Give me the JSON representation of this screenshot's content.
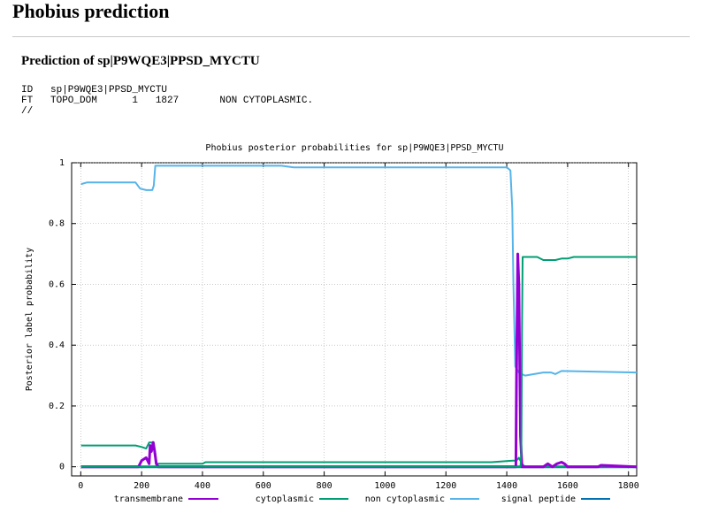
{
  "page": {
    "title": "Phobius prediction",
    "subtitle": "Prediction of sp|P9WQE3|PPSD_MYCTU"
  },
  "flat_file": {
    "lines": [
      "ID   sp|P9WQE3|PPSD_MYCTU",
      "FT   TOPO_DOM      1   1827       NON CYTOPLASMIC.",
      "//"
    ]
  },
  "chart_data": {
    "type": "line",
    "title": "Phobius posterior probabilities for sp|P9WQE3|PPSD_MYCTU",
    "xlabel": "",
    "ylabel": "Posterior label probability",
    "xlim": [
      -30,
      1827
    ],
    "ylim": [
      -0.03,
      1
    ],
    "x_ticks": [
      0,
      200,
      400,
      600,
      800,
      1000,
      1200,
      1400,
      1600,
      1800
    ],
    "y_ticks": [
      0,
      0.2,
      0.4,
      0.6,
      0.8,
      1
    ],
    "y_tick_labels": [
      "0",
      "0.2",
      "0.4",
      "0.6",
      "0.8",
      "1"
    ],
    "legend_position": "bottom",
    "series": [
      {
        "name": "transmembrane",
        "color": "#9400d3",
        "width": 3,
        "points": [
          [
            1,
            0
          ],
          [
            190,
            0
          ],
          [
            200,
            0.02
          ],
          [
            215,
            0.03
          ],
          [
            225,
            0.01
          ],
          [
            228,
            0.07
          ],
          [
            232,
            0.05
          ],
          [
            238,
            0.08
          ],
          [
            243,
            0.05
          ],
          [
            248,
            0.01
          ],
          [
            255,
            0
          ],
          [
            1430,
            0
          ],
          [
            1432,
            0.3
          ],
          [
            1436,
            0.7
          ],
          [
            1440,
            0.6
          ],
          [
            1445,
            0.1
          ],
          [
            1450,
            0
          ],
          [
            1520,
            0
          ],
          [
            1535,
            0.01
          ],
          [
            1550,
            0
          ],
          [
            1565,
            0.01
          ],
          [
            1580,
            0.015
          ],
          [
            1590,
            0.01
          ],
          [
            1600,
            0
          ],
          [
            1700,
            0
          ],
          [
            1710,
            0.005
          ],
          [
            1827,
            0
          ]
        ]
      },
      {
        "name": "cytoplasmic",
        "color": "#009e73",
        "width": 2,
        "points": [
          [
            1,
            0.07
          ],
          [
            180,
            0.07
          ],
          [
            200,
            0.065
          ],
          [
            215,
            0.06
          ],
          [
            225,
            0.08
          ],
          [
            240,
            0.08
          ],
          [
            250,
            0.01
          ],
          [
            400,
            0.01
          ],
          [
            410,
            0.015
          ],
          [
            1350,
            0.015
          ],
          [
            1420,
            0.02
          ],
          [
            1432,
            0.02
          ],
          [
            1440,
            0.03
          ],
          [
            1450,
            0.01
          ],
          [
            1460,
            0
          ],
          [
            1827,
            0
          ]
        ]
      },
      {
        "name": "non cytoplasmic",
        "color": "#009e73",
        "width": 2,
        "points": [
          [
            1,
            0
          ],
          [
            1445,
            0
          ],
          [
            1448,
            0.05
          ],
          [
            1450,
            0.45
          ],
          [
            1452,
            0.69
          ],
          [
            1500,
            0.69
          ],
          [
            1520,
            0.68
          ],
          [
            1560,
            0.68
          ],
          [
            1580,
            0.685
          ],
          [
            1600,
            0.685
          ],
          [
            1620,
            0.69
          ],
          [
            1827,
            0.69
          ]
        ]
      },
      {
        "name": "signal peptide",
        "color": "#56b4e9",
        "width": 2,
        "points": [
          [
            1,
            0.93
          ],
          [
            20,
            0.935
          ],
          [
            180,
            0.935
          ],
          [
            195,
            0.915
          ],
          [
            215,
            0.91
          ],
          [
            235,
            0.91
          ],
          [
            240,
            0.925
          ],
          [
            245,
            0.99
          ],
          [
            600,
            0.99
          ],
          [
            660,
            0.99
          ],
          [
            700,
            0.985
          ],
          [
            1400,
            0.985
          ],
          [
            1412,
            0.975
          ],
          [
            1418,
            0.85
          ],
          [
            1422,
            0.6
          ],
          [
            1428,
            0.33
          ],
          [
            1440,
            0.31
          ],
          [
            1460,
            0.3
          ],
          [
            1520,
            0.31
          ],
          [
            1545,
            0.31
          ],
          [
            1560,
            0.305
          ],
          [
            1580,
            0.315
          ],
          [
            1827,
            0.31
          ]
        ]
      },
      {
        "name": "signal peptide",
        "color": "#0072b2",
        "width": 3,
        "points": [
          [
            1,
            0
          ],
          [
            1827,
            0
          ]
        ]
      }
    ]
  }
}
